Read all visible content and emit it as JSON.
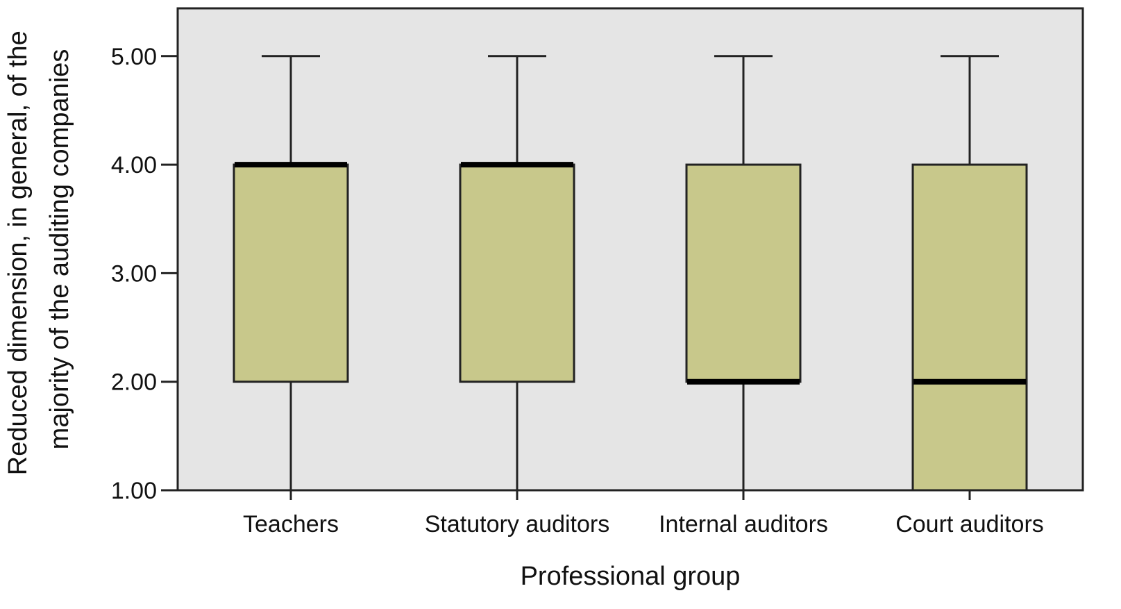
{
  "chart_data": {
    "type": "box",
    "xlabel": "Professional group",
    "ylabel": [
      "Reduced dimension, in general, of the",
      "majority of the auditing companies"
    ],
    "ylim": [
      1,
      5.44
    ],
    "yticks": [
      {
        "value": 5,
        "label": "5.00"
      },
      {
        "value": 4,
        "label": "4.00"
      },
      {
        "value": 3,
        "label": "3.00"
      },
      {
        "value": 2,
        "label": "2.00"
      },
      {
        "value": 1,
        "label": "1.00"
      }
    ],
    "categories": [
      "Teachers",
      "Statutory auditors",
      "Internal auditors",
      "Court auditors"
    ],
    "boxes": [
      {
        "category": "Teachers",
        "min": 1,
        "q1": 2,
        "median": 4,
        "q3": 4,
        "max": 5
      },
      {
        "category": "Statutory auditors",
        "min": 1,
        "q1": 2,
        "median": 4,
        "q3": 4,
        "max": 5
      },
      {
        "category": "Internal auditors",
        "min": 1,
        "q1": 2,
        "median": 2,
        "q3": 4,
        "max": 5
      },
      {
        "category": "Court auditors",
        "min": 1,
        "q1": 1,
        "median": 2,
        "q3": 4,
        "max": 5
      }
    ],
    "colors": {
      "box_fill": "#c8c88b",
      "plot_background": "#e5e5e5",
      "line": "#222222",
      "median": "#000000"
    }
  }
}
